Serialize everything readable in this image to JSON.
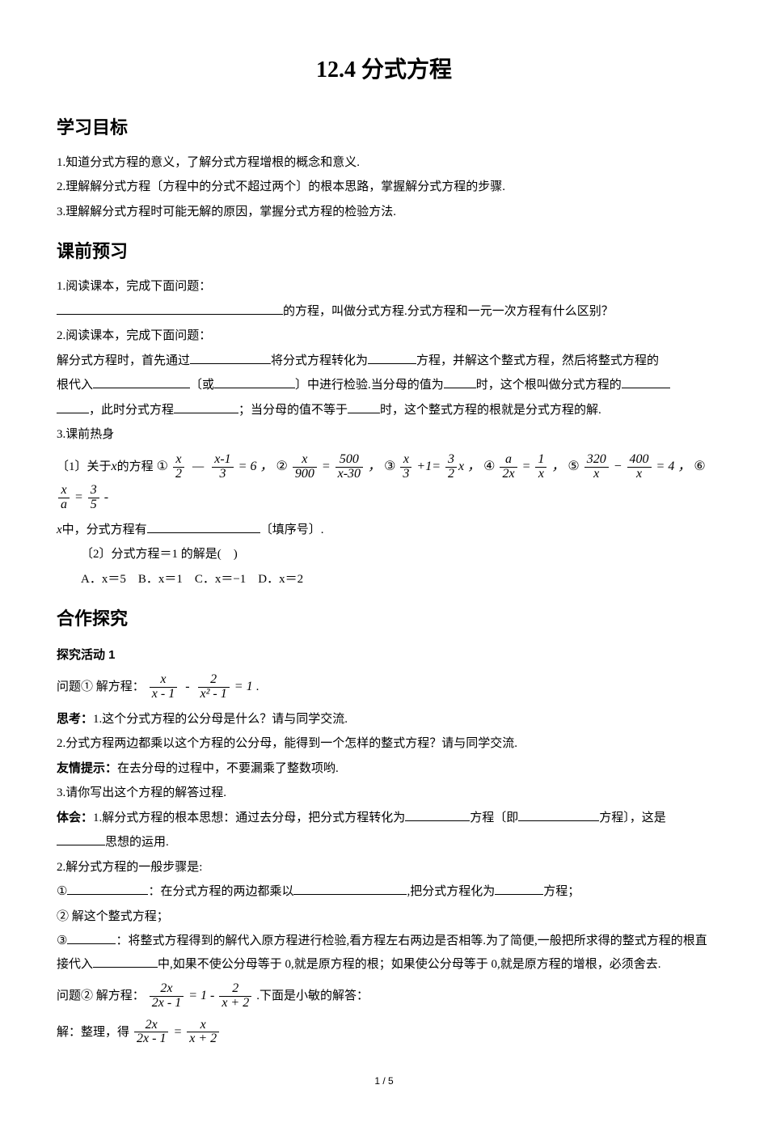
{
  "title": "12.4 分式方程",
  "sections": {
    "goals_heading": "学习目标",
    "goals": [
      "1.知道分式方程的意义，了解分式方程增根的概念和意义.",
      "2.理解解分式方程〔方程中的分式不超过两个〕的根本思路，掌握解分式方程的步骤.",
      "3.理解解分式方程时可能无解的原因，掌握分式方程的检验方法."
    ],
    "preview_heading": "课前预习",
    "preview_q1_lead": "1.阅读课本，完成下面问题：",
    "preview_q1_tail": "的方程，叫做分式方程.分式方程和一元一次方程有什么区别？",
    "preview_q2_lead": "2.阅读课本，完成下面问题：",
    "preview_q2_a": "解分式方程时，首先通过",
    "preview_q2_b": "将分式方程转化为",
    "preview_q2_c": "方程，并解这个整式方程，然后将整式方程的",
    "preview_q2_d": "根代入",
    "preview_q2_e": "〔或",
    "preview_q2_f": "〕中进行检验.当分母的值为",
    "preview_q2_g": "时，这个根叫做分式方程的",
    "preview_q2_h": "，此时分式方程",
    "preview_q2_i": "；当分母的值不等于",
    "preview_q2_j": "时，这个整式方程的根就是分式方程的解.",
    "warmup_heading": "3.课前热身",
    "warmup1_lead": "〔1〕关于",
    "warmup1_mid": "的方程",
    "circled": {
      "c1": "①",
      "c2": "②",
      "c3": "③",
      "c4": "④",
      "c5": "⑤",
      "c6": "⑥"
    },
    "eq_parts": {
      "x": "x",
      "xm1": "x-1",
      "two": "2",
      "three": "3",
      "eq6": " = 6 ，",
      "n900": "900",
      "n500": "500",
      "xm30": "x-30",
      "eqc": " = ",
      "comma": " ，",
      "plus1eq": " +1= ",
      "threeovertwox": "x",
      "half_den": "2",
      "a": "a",
      "one": "1",
      "twox": "2x",
      "n320": "320",
      "n400": "400",
      "eq4": " = 4 ，",
      "five": "5",
      "dashstop": " - "
    },
    "warmup1_tail_a": "中，分式方程有",
    "warmup1_tail_b": "〔填序号〕.",
    "warmup2_lead": "〔2〕分式方程＝1 的解是(　)",
    "warmup2_opts": "A．x＝5　B．x＝1　C．x＝−1　D．x＝2",
    "explore_heading": "合作探究",
    "act1_heading": "探究活动 1",
    "act1_q_lead": "问题① 解方程：",
    "act1_eq": {
      "num1": "x",
      "den1": "x - 1",
      "num2": "2",
      "den2": "x² - 1",
      "rhs": " = 1"
    },
    "think_label": "思考：",
    "think1": "1.这个分式方程的公分母是什么？请与同学交流.",
    "think2": "2.分式方程两边都乘以这个方程的公分母，能得到一个怎样的整式方程？请与同学交流.",
    "tip_label": "友情提示：",
    "tip_text": "在去分母的过程中，不要漏乘了整数项哟.",
    "think3": "3.请你写出这个方程的解答过程.",
    "feel_label": "体会：",
    "feel1_a": "1.解分式方程的根本思想：通过去分母，把分式方程转化为",
    "feel1_b": "方程〔即",
    "feel1_c": "方程〕，这是",
    "feel1_d": "思想的运用.",
    "feel2": "2.解分式方程的一般步骤是:",
    "step1_a": "①",
    "step1_b": "：在分式方程的两边都乘以",
    "step1_c": ",把分式方程化为",
    "step1_d": "方程；",
    "step2": "② 解这个整式方程；",
    "step3_a": "③",
    "step3_b": "：将整式方程得到的解代入原方程进行检验,看方程左右两边是否相等.为了简便,一般把所求得的整式方程的根直接代入",
    "step3_c": "中,如果不使公分母等于 0,就是原方程的根；如果使公分母等于 0,就是原方程的增根，必须舍去.",
    "q2_lead": "问题② 解方程：",
    "q2_eq": {
      "num1": "2x",
      "den1": "2x - 1",
      "mid": " = 1 - ",
      "num2": "2",
      "den2": "x + 2"
    },
    "q2_tail": " .下面是小敏的解答：",
    "sol_lead": "解：整理，得",
    "sol_eq": {
      "num1": "2x",
      "den1": "2x - 1",
      "eq": " = ",
      "num2": "x",
      "den2": "x + 2"
    }
  },
  "page_num": "1 / 5",
  "colors": {
    "text": "#000000",
    "bg": "#ffffff"
  }
}
